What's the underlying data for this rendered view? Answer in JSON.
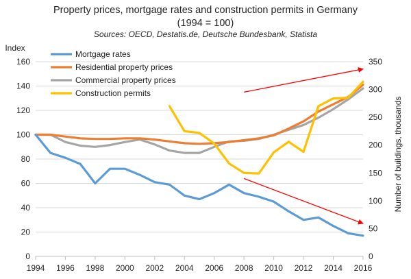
{
  "chart_data": {
    "type": "line",
    "title": "Property prices,  mortgage rates and construction permits in Germany",
    "title_line2": "(1994 = 100)",
    "subtitle": "Sources: OECD, Destatis.de, Deutsche Bundesbank, Statista",
    "ylabel_left": "Index",
    "ylabel_right": "Number of buildings, thousands",
    "x_ticks": [
      1994,
      1996,
      1998,
      2000,
      2002,
      2004,
      2006,
      2008,
      2010,
      2012,
      2014,
      2016
    ],
    "xlim": [
      1994,
      2016
    ],
    "y_left": {
      "lim": [
        0,
        160
      ],
      "ticks": [
        0,
        20,
        40,
        60,
        80,
        100,
        120,
        140,
        160
      ]
    },
    "y_right": {
      "lim": [
        0,
        350
      ],
      "ticks": [
        0,
        50,
        100,
        150,
        200,
        250,
        300,
        350
      ]
    },
    "grid": "horizontal",
    "legend_position": "top-left",
    "series": [
      {
        "name": "Mortgage rates",
        "color": "#5b9bd5",
        "axis": "left",
        "x": [
          1994,
          1995,
          1996,
          1997,
          1998,
          1999,
          2000,
          2001,
          2002,
          2003,
          2004,
          2005,
          2006,
          2007,
          2008,
          2009,
          2010,
          2011,
          2012,
          2013,
          2014,
          2015,
          2016
        ],
        "values": [
          100,
          85,
          81,
          76,
          60,
          72,
          72,
          67,
          61,
          59,
          50,
          47,
          52,
          59,
          52,
          49,
          45,
          37,
          30,
          32,
          25,
          19,
          17
        ]
      },
      {
        "name": "Residential property prices",
        "color": "#ed7d31",
        "axis": "left",
        "x": [
          1994,
          1995,
          1996,
          1997,
          1998,
          1999,
          2000,
          2001,
          2002,
          2003,
          2004,
          2005,
          2006,
          2007,
          2008,
          2009,
          2010,
          2011,
          2012,
          2013,
          2014,
          2015,
          2016
        ],
        "values": [
          100,
          100,
          98.5,
          97,
          96.5,
          96.5,
          97,
          97,
          96,
          94.5,
          93,
          92.5,
          93,
          94,
          95.5,
          97,
          99.5,
          105,
          111,
          119,
          125,
          131,
          141
        ]
      },
      {
        "name": "Commercial property prices",
        "color": "#a5a5a5",
        "axis": "left",
        "x": [
          1994,
          1995,
          1996,
          1997,
          1998,
          1999,
          2000,
          2001,
          2002,
          2003,
          2004,
          2005,
          2006,
          2007,
          2008,
          2009,
          2010,
          2011,
          2012,
          2013,
          2014,
          2015,
          2016
        ],
        "values": [
          100,
          100,
          94,
          91,
          90,
          91.5,
          94,
          96,
          92,
          87,
          85,
          85,
          90,
          94.5,
          95,
          96.5,
          100,
          104,
          108,
          114,
          121,
          129,
          138
        ]
      },
      {
        "name": "Construction permits",
        "color": "#ffc000",
        "axis": "right",
        "x": [
          2003,
          2004,
          2005,
          2006,
          2007,
          2008,
          2009,
          2010,
          2011,
          2012,
          2013,
          2014,
          2015,
          2016
        ],
        "values": [
          270,
          225,
          222,
          203,
          167,
          150,
          149,
          187,
          206,
          188,
          270,
          284,
          285,
          314
        ]
      }
    ],
    "annotations": [
      {
        "type": "arrow",
        "color": "#ff0000",
        "from": [
          2008,
          135
        ],
        "to": [
          2016,
          154
        ]
      },
      {
        "type": "arrow",
        "color": "#ff0000",
        "from": [
          2008,
          64
        ],
        "to": [
          2016,
          27
        ]
      }
    ]
  }
}
